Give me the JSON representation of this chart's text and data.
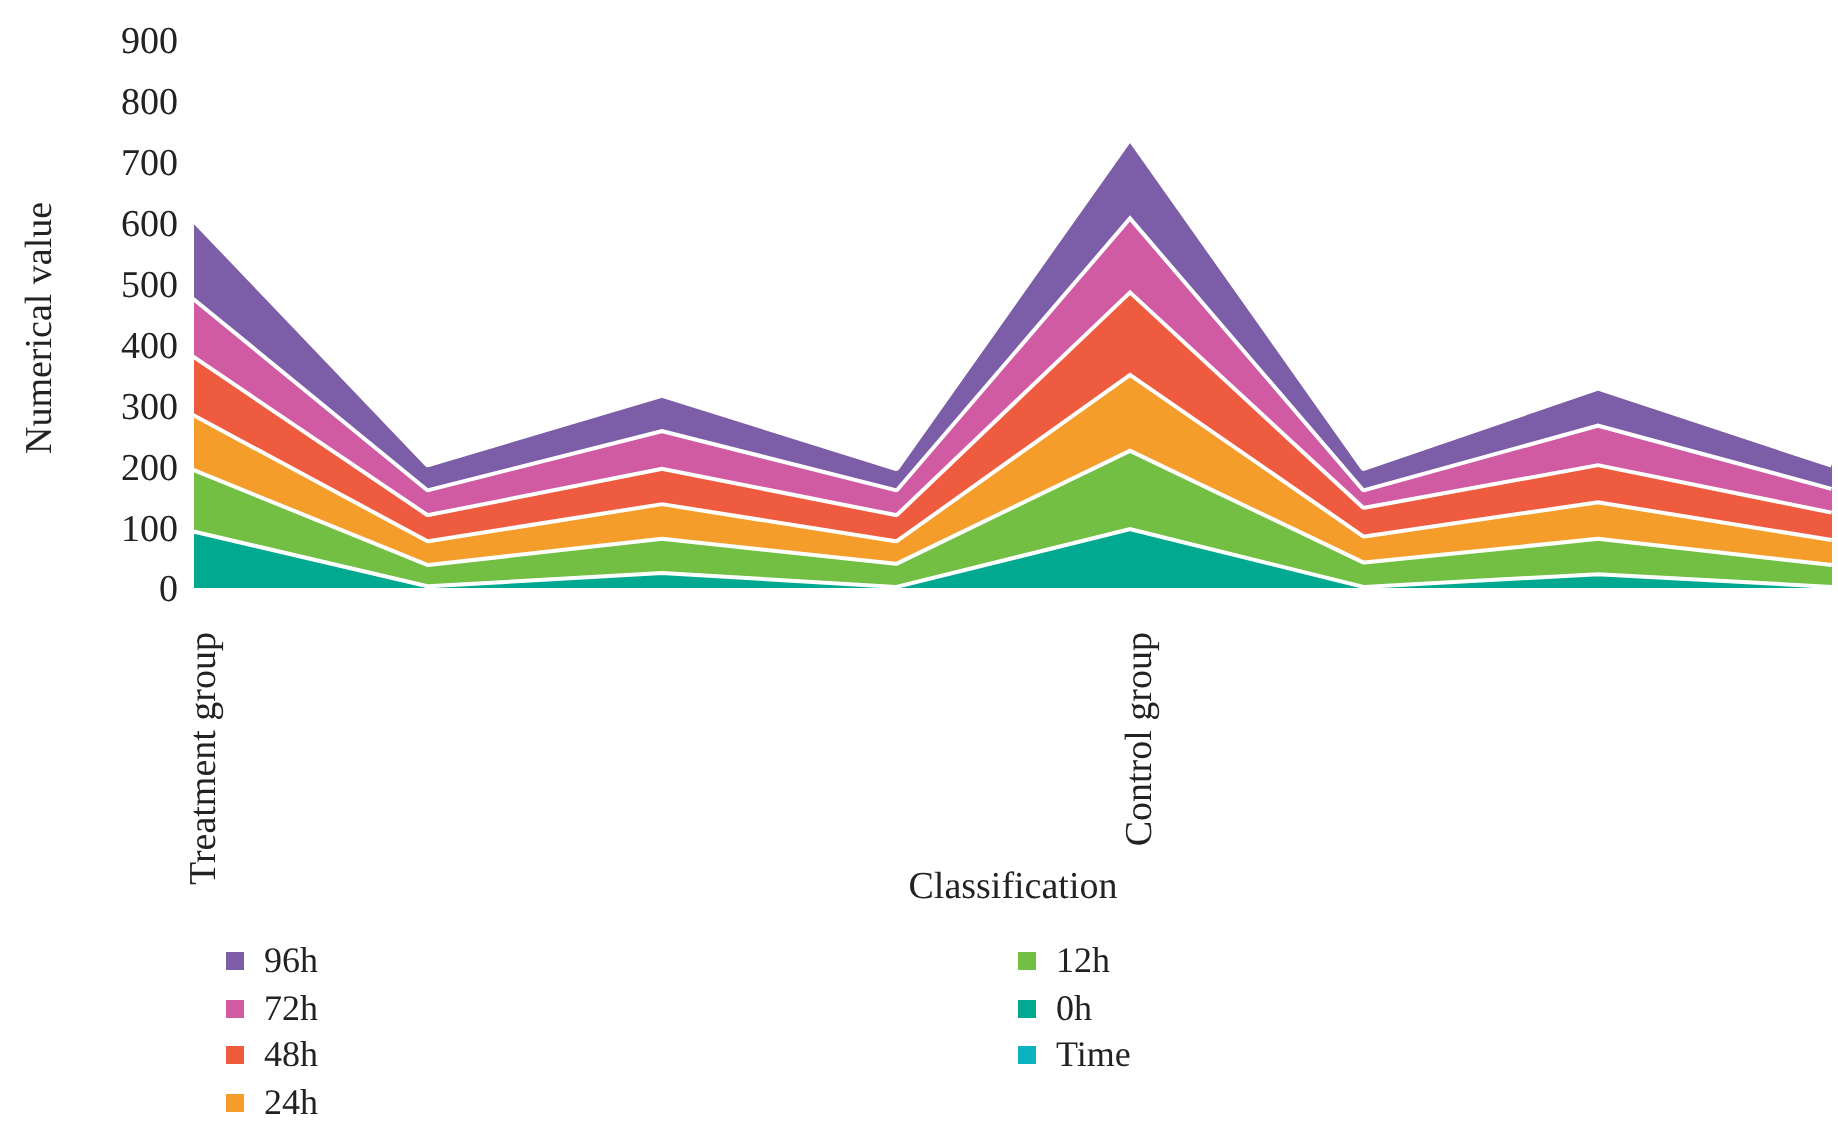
{
  "chart_data": {
    "type": "area",
    "stacked": true,
    "xlabel": "Classification",
    "ylabel": "Numerical value",
    "categories": [
      "Treatment group",
      null,
      null,
      null,
      "Control group",
      null,
      null,
      null
    ],
    "ylim": [
      0,
      900
    ],
    "yticks": [
      0,
      100,
      200,
      300,
      400,
      500,
      600,
      700,
      800,
      900
    ],
    "grid": false,
    "legend": "bottom",
    "series": [
      {
        "name": "Time",
        "color": "#0bb3c0",
        "values": [
          null,
          null,
          null,
          null,
          null,
          null,
          null,
          null
        ]
      },
      {
        "name": "0h",
        "color": "#00a98f",
        "values": [
          96,
          6,
          28,
          5,
          100,
          5,
          26,
          5
        ]
      },
      {
        "name": "12h",
        "color": "#72bf44",
        "values": [
          101,
          35,
          56,
          38,
          129,
          40,
          58,
          36
        ]
      },
      {
        "name": "24h",
        "color": "#f59d2a",
        "values": [
          90,
          39,
          57,
          37,
          125,
          43,
          60,
          41
        ]
      },
      {
        "name": "48h",
        "color": "#ef5b3f",
        "values": [
          96,
          43,
          58,
          43,
          136,
          47,
          61,
          45
        ]
      },
      {
        "name": "72h",
        "color": "#d15ba3",
        "values": [
          95,
          41,
          62,
          41,
          122,
          29,
          65,
          39
        ]
      },
      {
        "name": "96h",
        "color": "#7b5ea7",
        "values": [
          129,
          41,
          58,
          35,
          130,
          35,
          61,
          38
        ]
      }
    ]
  }
}
